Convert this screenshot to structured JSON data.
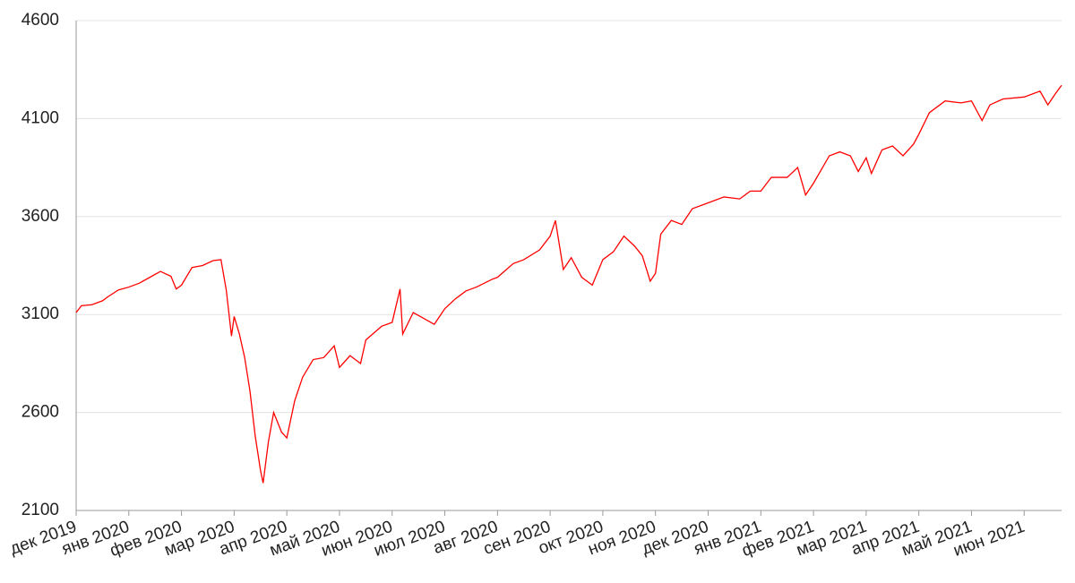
{
  "chart_data": {
    "type": "line",
    "x": [
      0,
      0.1,
      0.3,
      0.5,
      0.6,
      0.8,
      1.0,
      1.2,
      1.4,
      1.6,
      1.8,
      1.9,
      2.0,
      2.2,
      2.4,
      2.6,
      2.75,
      2.85,
      2.95,
      3.0,
      3.1,
      3.2,
      3.3,
      3.4,
      3.5,
      3.55,
      3.65,
      3.75,
      3.9,
      4.0,
      4.15,
      4.3,
      4.5,
      4.7,
      4.9,
      5.0,
      5.2,
      5.4,
      5.5,
      5.8,
      6.0,
      6.15,
      6.2,
      6.4,
      6.6,
      6.8,
      7.0,
      7.2,
      7.4,
      7.6,
      7.9,
      8.0,
      8.3,
      8.5,
      8.8,
      9.0,
      9.1,
      9.25,
      9.4,
      9.6,
      9.8,
      10.0,
      10.2,
      10.4,
      10.6,
      10.75,
      10.9,
      11.0,
      11.1,
      11.3,
      11.5,
      11.7,
      12.0,
      12.3,
      12.6,
      12.8,
      13.0,
      13.2,
      13.5,
      13.7,
      13.85,
      14.0,
      14.3,
      14.5,
      14.7,
      14.85,
      15.0,
      15.1,
      15.3,
      15.5,
      15.7,
      15.9,
      16.0,
      16.2,
      16.5,
      16.8,
      17.0,
      17.2,
      17.35,
      17.6,
      18.0,
      18.3,
      18.45,
      18.6,
      18.71
    ],
    "series": [
      {
        "color": "#ff0000",
        "values": [
          3110,
          3145,
          3150,
          3170,
          3190,
          3225,
          3240,
          3260,
          3290,
          3320,
          3295,
          3230,
          3250,
          3340,
          3350,
          3375,
          3380,
          3225,
          2990,
          3090,
          3000,
          2880,
          2710,
          2480,
          2305,
          2240,
          2450,
          2600,
          2500,
          2470,
          2660,
          2780,
          2870,
          2880,
          2940,
          2830,
          2890,
          2850,
          2970,
          3040,
          3060,
          3230,
          3000,
          3110,
          3080,
          3050,
          3130,
          3180,
          3220,
          3240,
          3280,
          3290,
          3360,
          3380,
          3430,
          3500,
          3580,
          3330,
          3390,
          3290,
          3250,
          3380,
          3420,
          3500,
          3450,
          3400,
          3270,
          3310,
          3510,
          3580,
          3560,
          3640,
          3670,
          3700,
          3690,
          3730,
          3730,
          3800,
          3800,
          3850,
          3710,
          3770,
          3910,
          3930,
          3910,
          3830,
          3900,
          3820,
          3940,
          3960,
          3910,
          3970,
          4020,
          4130,
          4190,
          4180,
          4190,
          4090,
          4170,
          4200,
          4210,
          4240,
          4170,
          4230,
          4270
        ]
      }
    ],
    "xlim": [
      0,
      18.71
    ],
    "xticks": [
      {
        "value": 0,
        "label": "дек 2019"
      },
      {
        "value": 1,
        "label": "янв 2020"
      },
      {
        "value": 2,
        "label": "фев 2020"
      },
      {
        "value": 3,
        "label": "мар 2020"
      },
      {
        "value": 4,
        "label": "апр 2020"
      },
      {
        "value": 5,
        "label": "май 2020"
      },
      {
        "value": 6,
        "label": "июн 2020"
      },
      {
        "value": 7,
        "label": "июл 2020"
      },
      {
        "value": 8,
        "label": "авг 2020"
      },
      {
        "value": 9,
        "label": "сен 2020"
      },
      {
        "value": 10,
        "label": "окт 2020"
      },
      {
        "value": 11,
        "label": "ноя 2020"
      },
      {
        "value": 12,
        "label": "дек 2020"
      },
      {
        "value": 13,
        "label": "янв 2021"
      },
      {
        "value": 14,
        "label": "фев 2021"
      },
      {
        "value": 15,
        "label": "мар 2021"
      },
      {
        "value": 16,
        "label": "апр 2021"
      },
      {
        "value": 17,
        "label": "май 2021"
      },
      {
        "value": 18,
        "label": "июн 2021"
      }
    ],
    "ylim": [
      2100,
      4600
    ],
    "yticks": [
      2100,
      2600,
      3100,
      3600,
      4100,
      4600
    ],
    "grid": true
  }
}
